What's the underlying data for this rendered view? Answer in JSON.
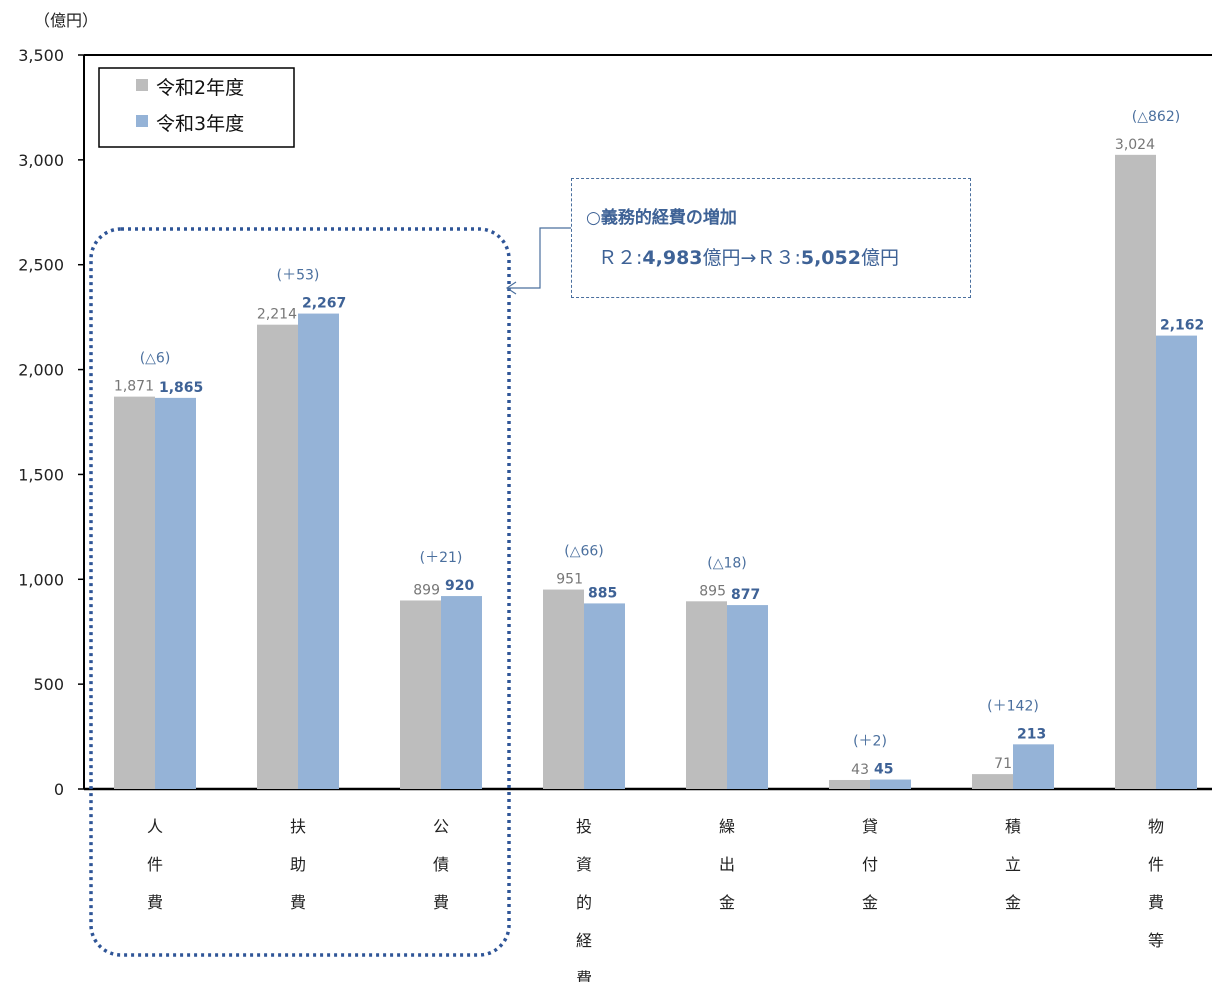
{
  "chart_data": {
    "type": "bar",
    "unit_label": "（億円）",
    "categories": [
      "人件費",
      "扶助費",
      "公債費",
      "投資的経費",
      "繰出金",
      "貸付金",
      "積立金",
      "物件費等"
    ],
    "series": [
      {
        "name": "令和2年度",
        "color": "#bdbdbd",
        "values": [
          1871,
          2214,
          899,
          951,
          895,
          43,
          71,
          3024
        ],
        "labels": [
          "1,871",
          "2,214",
          "899",
          "951",
          "895",
          "43",
          "71",
          "3,024"
        ]
      },
      {
        "name": "令和3年度",
        "color": "#95b3d7",
        "values": [
          1865,
          2267,
          920,
          885,
          877,
          45,
          213,
          2162
        ],
        "labels": [
          "1,865",
          "2,267",
          "920",
          "885",
          "877",
          "45",
          "213",
          "2,162"
        ]
      }
    ],
    "differences": [
      "(△6)",
      "(＋53)",
      "(＋21)",
      "(△66)",
      "(△18)",
      "(＋2)",
      "(＋142)",
      "(△862)"
    ],
    "ylim": [
      0,
      3500
    ],
    "yticks": [
      {
        "value": 0,
        "label": "0"
      },
      {
        "value": 500,
        "label": "500"
      },
      {
        "value": 1000,
        "label": "1,000"
      },
      {
        "value": 1500,
        "label": "1,500"
      },
      {
        "value": 2000,
        "label": "2,000"
      },
      {
        "value": 2500,
        "label": "2,500"
      },
      {
        "value": 3000,
        "label": "3,000"
      },
      {
        "value": 3500,
        "label": "3,500"
      }
    ],
    "grid": false,
    "legend_position": "top-left",
    "group_highlight": [
      "人件費",
      "扶助費",
      "公債費"
    ]
  },
  "callout": {
    "title": "○義務的経費の増加",
    "r2_prefix": "Ｒ２:",
    "r2_value": "4,983",
    "r2_unit": "億円→",
    "r3_prefix": "Ｒ３:",
    "r3_value": "5,052",
    "r3_unit": "億円"
  }
}
